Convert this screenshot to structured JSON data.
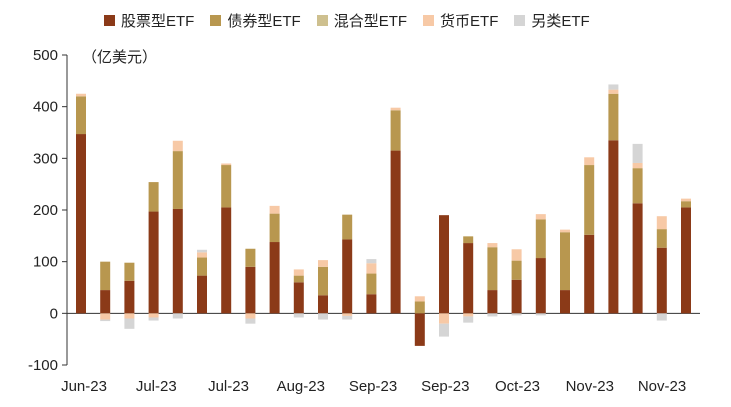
{
  "chart_data": {
    "type": "bar",
    "stacked": true,
    "unit_label": "（亿美元）",
    "ylim": [
      -100,
      500
    ],
    "yticks": [
      -100,
      0,
      100,
      200,
      300,
      400,
      500
    ],
    "xtick_labels": [
      "Jun-23",
      "Jul-23",
      "Jul-23",
      "Aug-23",
      "Sep-23",
      "Sep-23",
      "Oct-23",
      "Nov-23",
      "Nov-23"
    ],
    "legend_position": "top",
    "grid": false,
    "series": [
      {
        "name": "股票型ETF",
        "color": "#8B3A18",
        "values": [
          347,
          45,
          63,
          197,
          202,
          73,
          205,
          90,
          138,
          60,
          35,
          143,
          37,
          315,
          -63,
          190,
          136,
          45,
          65,
          107,
          45,
          152,
          335,
          213,
          127,
          205
        ]
      },
      {
        "name": "债券型ETF",
        "color": "#B8974F",
        "values": [
          73,
          55,
          35,
          57,
          112,
          35,
          82,
          35,
          55,
          13,
          55,
          48,
          40,
          78,
          23,
          0,
          13,
          83,
          37,
          75,
          112,
          135,
          90,
          68,
          36,
          12
        ]
      },
      {
        "name": "混合型ETF",
        "color": "#CEC08F",
        "values": [
          0,
          0,
          0,
          0,
          0,
          0,
          0,
          0,
          0,
          0,
          0,
          0,
          0,
          0,
          0,
          0,
          0,
          0,
          0,
          0,
          0,
          0,
          0,
          0,
          0,
          0
        ]
      },
      {
        "name": "货币ETF",
        "color": "#F7C9A6",
        "values": [
          5,
          -12,
          -10,
          -8,
          20,
          10,
          3,
          -10,
          15,
          12,
          13,
          -5,
          20,
          5,
          10,
          -20,
          -6,
          8,
          22,
          10,
          5,
          15,
          8,
          10,
          25,
          5
        ]
      },
      {
        "name": "另类ETF",
        "color": "#D5D5D5",
        "values": [
          0,
          -3,
          -20,
          -6,
          -10,
          5,
          0,
          -10,
          0,
          -8,
          -12,
          -7,
          8,
          0,
          0,
          -25,
          -12,
          -6,
          -4,
          -4,
          0,
          0,
          10,
          37,
          -14,
          0
        ]
      }
    ]
  }
}
